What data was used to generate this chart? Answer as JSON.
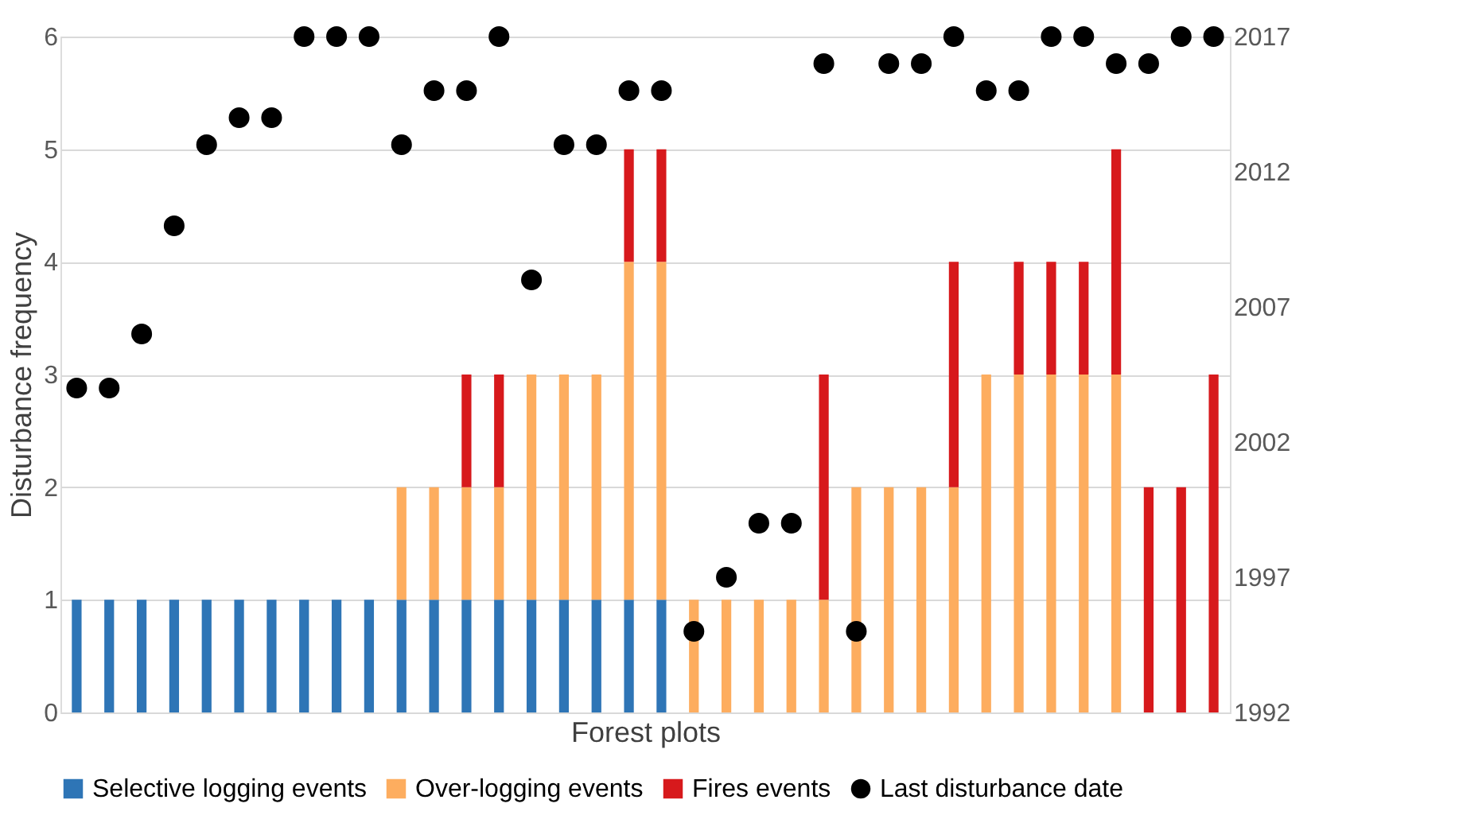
{
  "chart_data": {
    "type": "bar",
    "stacked": true,
    "xlabel": "Forest plots",
    "ylabel": "Disturbance frequency",
    "categories": [
      null,
      null,
      null,
      null,
      null,
      null,
      null,
      null,
      null,
      null,
      null,
      null,
      null,
      null,
      null,
      null,
      null,
      null,
      null,
      null,
      null,
      null,
      null,
      null,
      null,
      null,
      null,
      null,
      null,
      null,
      null,
      null,
      null,
      null,
      null,
      null
    ],
    "series": [
      {
        "name": "Selective logging events",
        "color": "#2e75b6",
        "values": [
          1,
          1,
          1,
          1,
          1,
          1,
          1,
          1,
          1,
          1,
          1,
          1,
          1,
          1,
          1,
          1,
          1,
          1,
          1,
          null,
          null,
          null,
          null,
          null,
          null,
          null,
          null,
          null,
          null,
          null,
          null,
          null,
          null,
          null,
          null,
          null
        ]
      },
      {
        "name": "Over-logging events",
        "color": "#fdad5f",
        "values": [
          null,
          null,
          null,
          null,
          null,
          null,
          null,
          null,
          null,
          null,
          1,
          1,
          1,
          1,
          2,
          2,
          2,
          3,
          3,
          1,
          1,
          1,
          1,
          1,
          2,
          2,
          2,
          2,
          3,
          3,
          3,
          3,
          3,
          null,
          null,
          null
        ]
      },
      {
        "name": "Fires events",
        "color": "#d7191c",
        "values": [
          null,
          null,
          null,
          null,
          null,
          null,
          null,
          null,
          null,
          null,
          null,
          null,
          1,
          1,
          null,
          null,
          null,
          1,
          1,
          null,
          null,
          null,
          null,
          2,
          null,
          null,
          null,
          2,
          null,
          1,
          1,
          1,
          2,
          2,
          2,
          3
        ]
      },
      {
        "name": "Last disturbance date",
        "type": "scatter",
        "axis": "y2",
        "color": "#000000",
        "values": [
          2004,
          2004,
          2006,
          2010,
          2013,
          2014,
          2014,
          2017,
          2017,
          2017,
          2013,
          2015,
          2015,
          2017,
          2008,
          2013,
          2013,
          2015,
          2015,
          1995,
          1997,
          1999,
          1999,
          2016,
          1995,
          2016,
          2016,
          2017,
          2015,
          2015,
          2017,
          2017,
          2016,
          2016,
          2017,
          2017
        ]
      }
    ],
    "ylim": [
      0,
      6
    ],
    "yticks": [
      0,
      1,
      2,
      3,
      4,
      5,
      6
    ],
    "y2lim": [
      1992,
      2017
    ],
    "y2ticks": [
      1992,
      1997,
      2002,
      2007,
      2012,
      2017
    ],
    "tick_labels": "y",
    "grid": "y",
    "legend": "bottom",
    "marker": "circle"
  }
}
